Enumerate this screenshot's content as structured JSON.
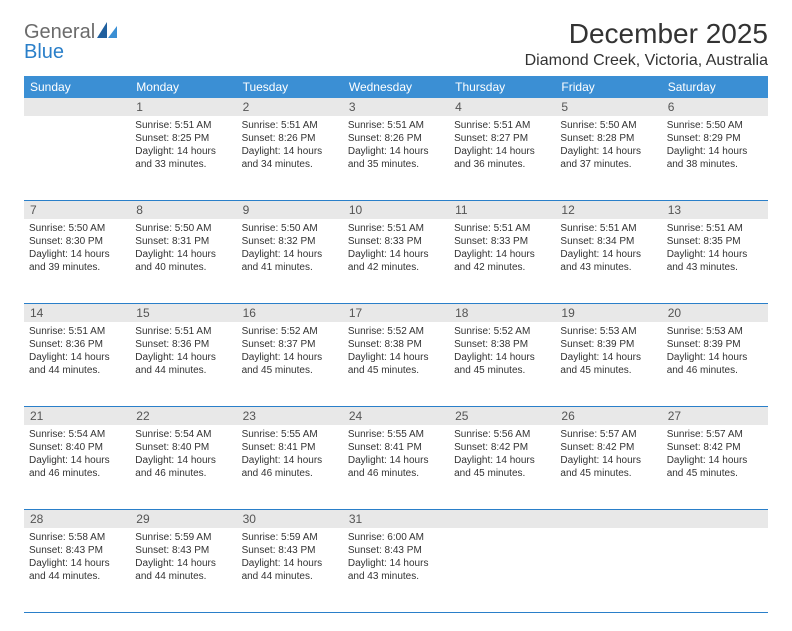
{
  "brand": {
    "text_gray": "General",
    "text_blue": "Blue"
  },
  "header": {
    "month_title": "December 2025",
    "location": "Diamond Creek, Victoria, Australia"
  },
  "styling": {
    "header_bg": "#3b8fd4",
    "row_border": "#2a7fc9",
    "daynum_bg": "#e8e8e8",
    "text_color": "#333333",
    "logo_gray": "#6b6b6b",
    "logo_blue": "#2a7fc9",
    "page_bg": "#ffffff",
    "title_fontsize": 28,
    "location_fontsize": 16,
    "weekday_fontsize": 12,
    "body_fontsize": 10
  },
  "weekdays": [
    "Sunday",
    "Monday",
    "Tuesday",
    "Wednesday",
    "Thursday",
    "Friday",
    "Saturday"
  ],
  "weeks": [
    [
      {
        "n": "",
        "sunrise": "",
        "sunset": "",
        "daylight": ""
      },
      {
        "n": "1",
        "sunrise": "Sunrise: 5:51 AM",
        "sunset": "Sunset: 8:25 PM",
        "daylight": "Daylight: 14 hours and 33 minutes."
      },
      {
        "n": "2",
        "sunrise": "Sunrise: 5:51 AM",
        "sunset": "Sunset: 8:26 PM",
        "daylight": "Daylight: 14 hours and 34 minutes."
      },
      {
        "n": "3",
        "sunrise": "Sunrise: 5:51 AM",
        "sunset": "Sunset: 8:26 PM",
        "daylight": "Daylight: 14 hours and 35 minutes."
      },
      {
        "n": "4",
        "sunrise": "Sunrise: 5:51 AM",
        "sunset": "Sunset: 8:27 PM",
        "daylight": "Daylight: 14 hours and 36 minutes."
      },
      {
        "n": "5",
        "sunrise": "Sunrise: 5:50 AM",
        "sunset": "Sunset: 8:28 PM",
        "daylight": "Daylight: 14 hours and 37 minutes."
      },
      {
        "n": "6",
        "sunrise": "Sunrise: 5:50 AM",
        "sunset": "Sunset: 8:29 PM",
        "daylight": "Daylight: 14 hours and 38 minutes."
      }
    ],
    [
      {
        "n": "7",
        "sunrise": "Sunrise: 5:50 AM",
        "sunset": "Sunset: 8:30 PM",
        "daylight": "Daylight: 14 hours and 39 minutes."
      },
      {
        "n": "8",
        "sunrise": "Sunrise: 5:50 AM",
        "sunset": "Sunset: 8:31 PM",
        "daylight": "Daylight: 14 hours and 40 minutes."
      },
      {
        "n": "9",
        "sunrise": "Sunrise: 5:50 AM",
        "sunset": "Sunset: 8:32 PM",
        "daylight": "Daylight: 14 hours and 41 minutes."
      },
      {
        "n": "10",
        "sunrise": "Sunrise: 5:51 AM",
        "sunset": "Sunset: 8:33 PM",
        "daylight": "Daylight: 14 hours and 42 minutes."
      },
      {
        "n": "11",
        "sunrise": "Sunrise: 5:51 AM",
        "sunset": "Sunset: 8:33 PM",
        "daylight": "Daylight: 14 hours and 42 minutes."
      },
      {
        "n": "12",
        "sunrise": "Sunrise: 5:51 AM",
        "sunset": "Sunset: 8:34 PM",
        "daylight": "Daylight: 14 hours and 43 minutes."
      },
      {
        "n": "13",
        "sunrise": "Sunrise: 5:51 AM",
        "sunset": "Sunset: 8:35 PM",
        "daylight": "Daylight: 14 hours and 43 minutes."
      }
    ],
    [
      {
        "n": "14",
        "sunrise": "Sunrise: 5:51 AM",
        "sunset": "Sunset: 8:36 PM",
        "daylight": "Daylight: 14 hours and 44 minutes."
      },
      {
        "n": "15",
        "sunrise": "Sunrise: 5:51 AM",
        "sunset": "Sunset: 8:36 PM",
        "daylight": "Daylight: 14 hours and 44 minutes."
      },
      {
        "n": "16",
        "sunrise": "Sunrise: 5:52 AM",
        "sunset": "Sunset: 8:37 PM",
        "daylight": "Daylight: 14 hours and 45 minutes."
      },
      {
        "n": "17",
        "sunrise": "Sunrise: 5:52 AM",
        "sunset": "Sunset: 8:38 PM",
        "daylight": "Daylight: 14 hours and 45 minutes."
      },
      {
        "n": "18",
        "sunrise": "Sunrise: 5:52 AM",
        "sunset": "Sunset: 8:38 PM",
        "daylight": "Daylight: 14 hours and 45 minutes."
      },
      {
        "n": "19",
        "sunrise": "Sunrise: 5:53 AM",
        "sunset": "Sunset: 8:39 PM",
        "daylight": "Daylight: 14 hours and 45 minutes."
      },
      {
        "n": "20",
        "sunrise": "Sunrise: 5:53 AM",
        "sunset": "Sunset: 8:39 PM",
        "daylight": "Daylight: 14 hours and 46 minutes."
      }
    ],
    [
      {
        "n": "21",
        "sunrise": "Sunrise: 5:54 AM",
        "sunset": "Sunset: 8:40 PM",
        "daylight": "Daylight: 14 hours and 46 minutes."
      },
      {
        "n": "22",
        "sunrise": "Sunrise: 5:54 AM",
        "sunset": "Sunset: 8:40 PM",
        "daylight": "Daylight: 14 hours and 46 minutes."
      },
      {
        "n": "23",
        "sunrise": "Sunrise: 5:55 AM",
        "sunset": "Sunset: 8:41 PM",
        "daylight": "Daylight: 14 hours and 46 minutes."
      },
      {
        "n": "24",
        "sunrise": "Sunrise: 5:55 AM",
        "sunset": "Sunset: 8:41 PM",
        "daylight": "Daylight: 14 hours and 46 minutes."
      },
      {
        "n": "25",
        "sunrise": "Sunrise: 5:56 AM",
        "sunset": "Sunset: 8:42 PM",
        "daylight": "Daylight: 14 hours and 45 minutes."
      },
      {
        "n": "26",
        "sunrise": "Sunrise: 5:57 AM",
        "sunset": "Sunset: 8:42 PM",
        "daylight": "Daylight: 14 hours and 45 minutes."
      },
      {
        "n": "27",
        "sunrise": "Sunrise: 5:57 AM",
        "sunset": "Sunset: 8:42 PM",
        "daylight": "Daylight: 14 hours and 45 minutes."
      }
    ],
    [
      {
        "n": "28",
        "sunrise": "Sunrise: 5:58 AM",
        "sunset": "Sunset: 8:43 PM",
        "daylight": "Daylight: 14 hours and 44 minutes."
      },
      {
        "n": "29",
        "sunrise": "Sunrise: 5:59 AM",
        "sunset": "Sunset: 8:43 PM",
        "daylight": "Daylight: 14 hours and 44 minutes."
      },
      {
        "n": "30",
        "sunrise": "Sunrise: 5:59 AM",
        "sunset": "Sunset: 8:43 PM",
        "daylight": "Daylight: 14 hours and 44 minutes."
      },
      {
        "n": "31",
        "sunrise": "Sunrise: 6:00 AM",
        "sunset": "Sunset: 8:43 PM",
        "daylight": "Daylight: 14 hours and 43 minutes."
      },
      {
        "n": "",
        "sunrise": "",
        "sunset": "",
        "daylight": ""
      },
      {
        "n": "",
        "sunrise": "",
        "sunset": "",
        "daylight": ""
      },
      {
        "n": "",
        "sunrise": "",
        "sunset": "",
        "daylight": ""
      }
    ]
  ]
}
